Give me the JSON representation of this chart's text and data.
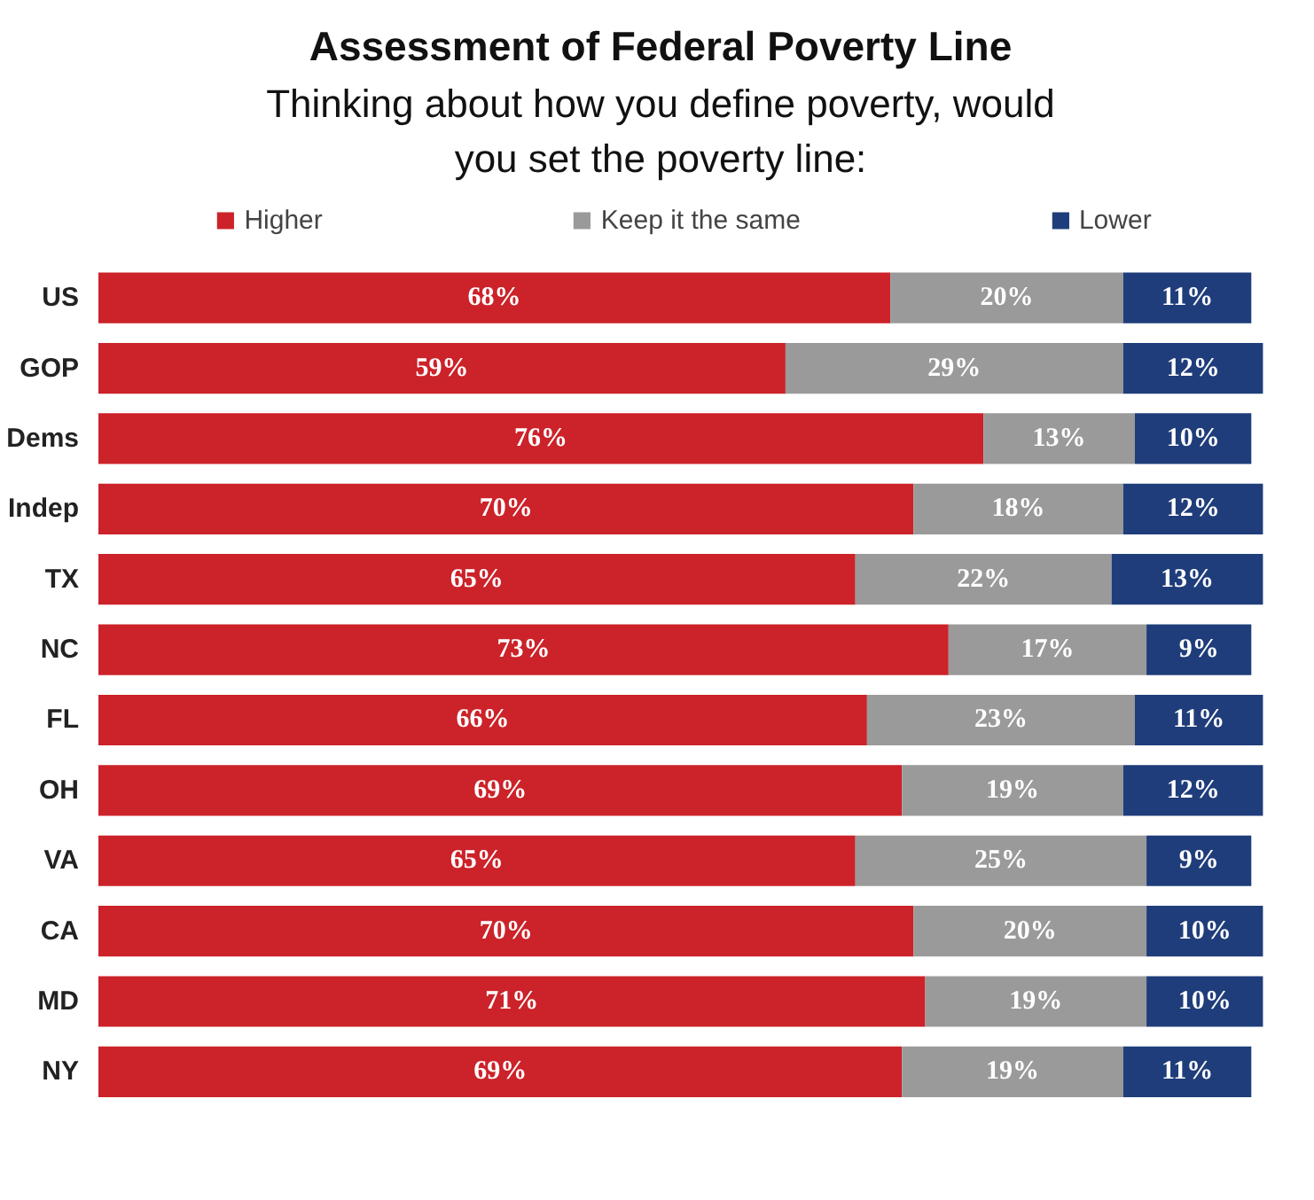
{
  "chart_data": {
    "type": "bar",
    "orientation": "horizontal",
    "stacked": true,
    "title": "Assessment of Federal Poverty Line",
    "subtitle": "Thinking about how you define poverty, would you set the poverty line:",
    "categories": [
      "US",
      "GOP",
      "Dems",
      "Indep",
      "TX",
      "NC",
      "FL",
      "OH",
      "VA",
      "CA",
      "MD",
      "NY"
    ],
    "series": [
      {
        "name": "Higher",
        "color": "#cc2229",
        "values": [
          68,
          59,
          76,
          70,
          65,
          73,
          66,
          69,
          65,
          70,
          71,
          69
        ],
        "value_labels": [
          "68%",
          "59%",
          "76%",
          "70%",
          "65%",
          "73%",
          "66%",
          "69%",
          "65%",
          "70%",
          "71%",
          "69%"
        ]
      },
      {
        "name": "Keep it the same",
        "color": "#9a9a9a",
        "values": [
          20,
          29,
          13,
          18,
          22,
          17,
          23,
          19,
          25,
          20,
          19,
          19
        ],
        "value_labels": [
          "20%",
          "29%",
          "13%",
          "18%",
          "22%",
          "17%",
          "23%",
          "19%",
          "25%",
          "20%",
          "19%",
          "19%"
        ]
      },
      {
        "name": "Lower",
        "color": "#1f3d7a",
        "values": [
          11,
          12,
          10,
          12,
          13,
          9,
          11,
          12,
          9,
          10,
          10,
          11
        ],
        "value_labels": [
          "11%",
          "12%",
          "10%",
          "12%",
          "13%",
          "9%",
          "11%",
          "12%",
          "9%",
          "10%",
          "10%",
          "11%"
        ]
      }
    ],
    "legend": "top",
    "grid": false
  }
}
